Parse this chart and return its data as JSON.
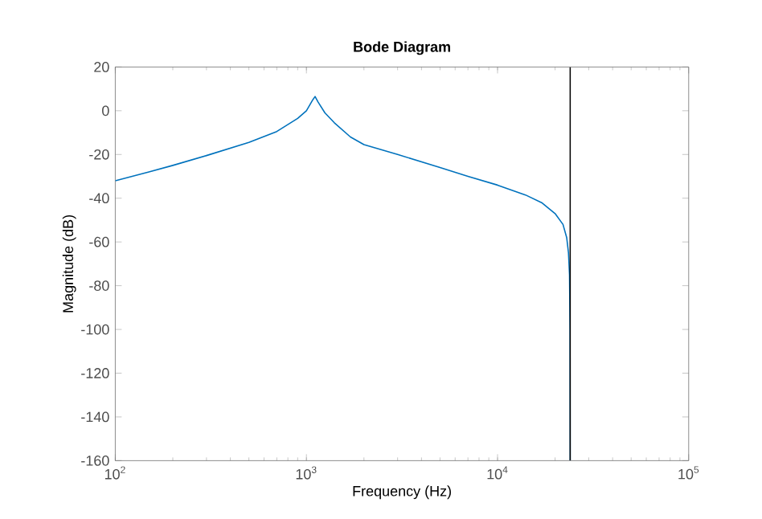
{
  "chart_data": {
    "type": "line",
    "title": "Bode Diagram",
    "xlabel": "Frequency  (Hz)",
    "ylabel": "Magnitude (dB)",
    "x": [
      100,
      150,
      200,
      300,
      500,
      700,
      900,
      1000,
      1080,
      1110,
      1150,
      1250,
      1400,
      1700,
      2000,
      3000,
      5000,
      7000,
      10000,
      14000,
      17000,
      20000,
      22000,
      23000,
      23500,
      23800,
      23950,
      24000
    ],
    "series": [
      {
        "color": "#0072bd",
        "values": [
          -32,
          -28,
          -25,
          -20.5,
          -14.5,
          -9.5,
          -3.5,
          0,
          5,
          6.5,
          4,
          -1,
          -5.5,
          -12,
          -15.5,
          -20,
          -26,
          -30,
          -34,
          -38.5,
          -42,
          -47,
          -52,
          -58,
          -65,
          -75,
          -100,
          -160
        ]
      }
    ],
    "log": "x",
    "xlim": [
      100,
      100000
    ],
    "ylim": [
      -160,
      20
    ],
    "xticks": [
      {
        "value": 100,
        "label": "10$^{2}$"
      },
      {
        "value": 1000,
        "label": "10$^{3}$"
      },
      {
        "value": 10000,
        "label": "10$^{4}$"
      },
      {
        "value": 100000,
        "label": "10$^{5}$"
      }
    ],
    "yticks": [
      -160,
      -140,
      -120,
      -100,
      -80,
      -60,
      -40,
      -20,
      0,
      20
    ],
    "ref_lines": [
      {
        "axis": "x",
        "value": 24000,
        "color": "#000000"
      }
    ]
  }
}
